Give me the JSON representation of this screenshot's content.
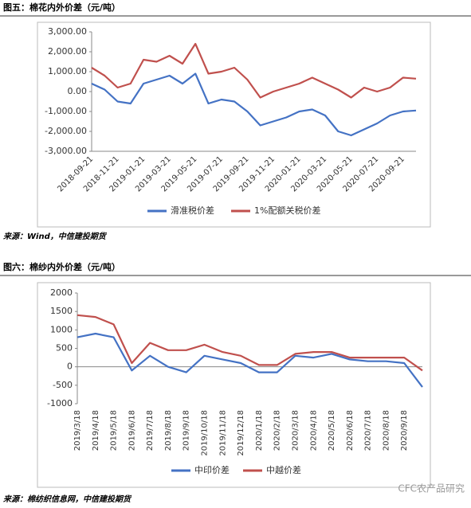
{
  "chart_data": [
    {
      "type": "line",
      "caption": "图五：棉花内外价差（元/吨）",
      "source": "来源：Wind，中信建投期货",
      "categories": [
        "2018-09-21",
        null,
        "2018-11-21",
        null,
        "2019-01-21",
        null,
        "2019-03-21",
        null,
        "2019-05-21",
        null,
        "2019-07-21",
        null,
        "2019-09-21",
        null,
        "2019-11-21",
        null,
        "2020-01-21",
        null,
        "2020-03-21",
        null,
        "2020-05-21",
        null,
        "2020-07-21",
        null,
        "2020-09-21",
        null
      ],
      "series": [
        {
          "name": "滑准税价差",
          "color": "#4472c4",
          "values": [
            400,
            100,
            -500,
            -600,
            400,
            600,
            800,
            400,
            900,
            -600,
            -400,
            -500,
            -1000,
            -1700,
            -1500,
            -1300,
            -1000,
            -900,
            -1200,
            -2000,
            -2200,
            -1900,
            -1600,
            -1200,
            -1000,
            -950
          ]
        },
        {
          "name": "1%配额关税价差",
          "color": "#c0504d",
          "values": [
            1200,
            800,
            200,
            400,
            1600,
            1500,
            1800,
            1400,
            2400,
            900,
            1000,
            1200,
            600,
            -300,
            0,
            200,
            400,
            700,
            400,
            100,
            -300,
            200,
            0,
            200,
            700,
            650
          ]
        }
      ],
      "ylim": [
        -3000,
        3000
      ],
      "yticks": [
        {
          "value": -3000,
          "label": "-3,000.00"
        },
        {
          "value": -2000,
          "label": "-2,000.00"
        },
        {
          "value": -1000,
          "label": "-1,000.00"
        },
        {
          "value": 0,
          "label": "0.00"
        },
        {
          "value": 1000,
          "label": "1,000.00"
        },
        {
          "value": 2000,
          "label": "2,000.00"
        },
        {
          "value": 3000,
          "label": "3,000.00"
        }
      ],
      "zero_line": false
    },
    {
      "type": "line",
      "caption": "图六：棉纱内外价差（元/吨）",
      "source": "来源：棉纺织信息网，中信建投期货",
      "watermark": "CFC农产品研究",
      "categories": [
        "2019/3/18",
        "2019/4/18",
        "2019/5/18",
        "2019/6/18",
        "2019/7/18",
        "2019/8/18",
        "2019/9/18",
        "2019/10/18",
        "2019/11/18",
        "2019/12/18",
        "2020/1/18",
        "2020/2/18",
        "2020/3/18",
        "2020/4/18",
        "2020/5/18",
        "2020/6/18",
        "2020/7/18",
        "2020/8/18",
        "2020/9/18",
        null
      ],
      "series": [
        {
          "name": "中印价差",
          "color": "#4472c4",
          "values": [
            800,
            900,
            800,
            -100,
            300,
            0,
            -150,
            300,
            200,
            100,
            -150,
            -150,
            300,
            250,
            350,
            200,
            150,
            150,
            100,
            -550
          ]
        },
        {
          "name": "中越价差",
          "color": "#c0504d",
          "values": [
            1400,
            1350,
            1150,
            100,
            650,
            450,
            450,
            600,
            400,
            300,
            50,
            50,
            350,
            400,
            400,
            250,
            250,
            250,
            250,
            -100
          ]
        }
      ],
      "ylim": [
        -1000,
        2000
      ],
      "yticks": [
        -1000,
        -500,
        0,
        500,
        1000,
        1500,
        2000
      ],
      "zero_line": true
    }
  ]
}
